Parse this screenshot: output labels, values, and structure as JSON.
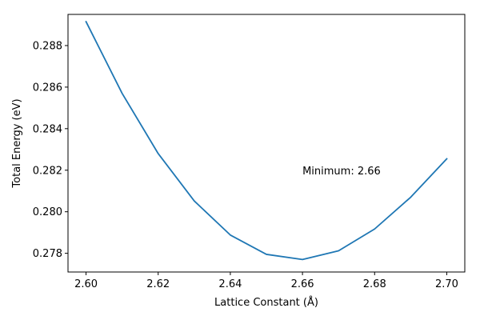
{
  "chart_data": {
    "type": "line",
    "title": "",
    "xlabel": "Lattice Constant (Å)",
    "ylabel": "Total Energy (eV)",
    "xlim": [
      2.595,
      2.705
    ],
    "ylim": [
      0.2771,
      0.2895
    ],
    "grid": false,
    "legend": "none",
    "xticks": [
      2.6,
      2.62,
      2.64,
      2.66,
      2.68,
      2.7
    ],
    "xtick_labels": [
      "2.60",
      "2.62",
      "2.64",
      "2.66",
      "2.68",
      "2.70"
    ],
    "yticks": [
      0.278,
      0.28,
      0.282,
      0.284,
      0.286,
      0.288
    ],
    "ytick_labels": [
      "0.278",
      "0.280",
      "0.282",
      "0.284",
      "0.286",
      "0.288"
    ],
    "series": [
      {
        "color": "#1f77b4",
        "x": [
          2.6,
          2.61,
          2.62,
          2.63,
          2.64,
          2.65,
          2.66,
          2.67,
          2.68,
          2.69,
          2.7
        ],
        "y": [
          0.28915,
          0.2857,
          0.2828,
          0.28052,
          0.27888,
          0.27795,
          0.2777,
          0.27812,
          0.27917,
          0.2807,
          0.28255
        ]
      }
    ],
    "annotations": [
      {
        "text": "Minimum: 2.66",
        "x": 2.66,
        "y": 0.282
      }
    ]
  }
}
